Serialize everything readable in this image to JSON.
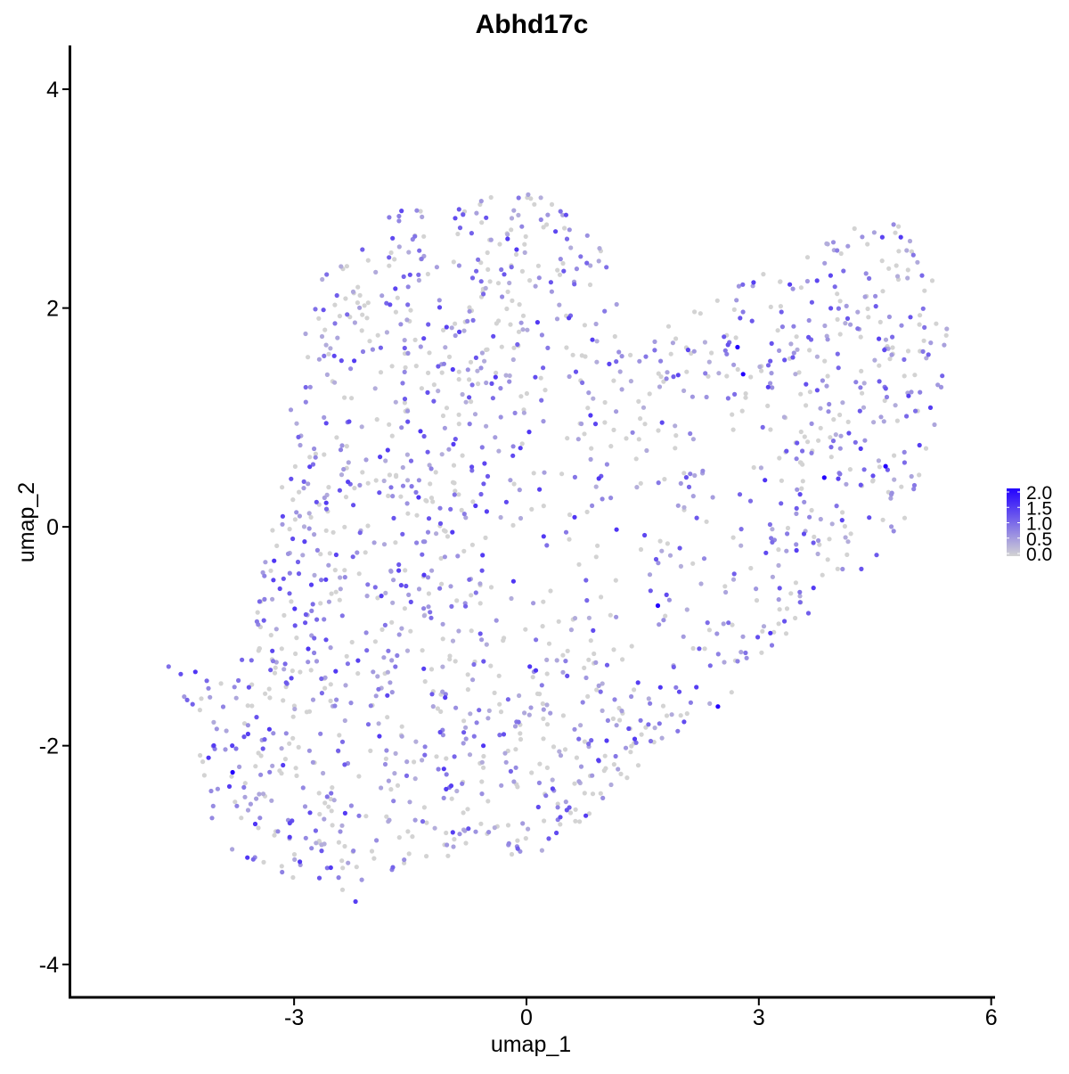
{
  "chart_data": {
    "type": "scatter",
    "title": "Abhd17c",
    "xlabel": "umap_1",
    "ylabel": "umap_2",
    "xlim": [
      -5.9,
      6.05
    ],
    "ylim": [
      -4.3,
      4.4
    ],
    "xticks": [
      -3,
      0,
      3,
      6
    ],
    "yticks": [
      -4,
      -2,
      0,
      2,
      4
    ],
    "xtick_labels": [
      "-3",
      "0",
      "3",
      "6"
    ],
    "ytick_labels": [
      "-4",
      "-2",
      "0",
      "2",
      "4"
    ],
    "grid": false,
    "legend": {
      "position": "right",
      "type": "colorbar",
      "min": 0.0,
      "max": 2.0,
      "ticks": [
        0.0,
        0.5,
        1.0,
        1.5,
        2.0
      ],
      "tick_labels": [
        "0.0",
        "0.5",
        "1.0",
        "1.5",
        "2.0"
      ]
    },
    "color_low": "#d3d3d3",
    "color_high": "#2200ff",
    "shape_outline": [
      [
        -4.75,
        -1.25
      ],
      [
        -4.45,
        -1.3
      ],
      [
        -4.05,
        -1.35
      ],
      [
        -3.6,
        -1.0
      ],
      [
        -3.35,
        -0.2
      ],
      [
        -3.2,
        0.55
      ],
      [
        -3.0,
        1.25
      ],
      [
        -2.85,
        1.9
      ],
      [
        -2.6,
        2.35
      ],
      [
        -2.2,
        2.75
      ],
      [
        -1.6,
        2.95
      ],
      [
        -1.0,
        3.02
      ],
      [
        -0.3,
        3.02
      ],
      [
        0.2,
        3.05
      ],
      [
        0.7,
        2.85
      ],
      [
        1.0,
        2.55
      ],
      [
        1.1,
        2.2
      ],
      [
        1.45,
        1.7
      ],
      [
        2.05,
        1.95
      ],
      [
        2.6,
        2.2
      ],
      [
        3.2,
        2.4
      ],
      [
        3.7,
        2.5
      ],
      [
        4.1,
        2.72
      ],
      [
        4.5,
        2.92
      ],
      [
        4.95,
        2.7
      ],
      [
        5.35,
        2.25
      ],
      [
        5.45,
        1.75
      ],
      [
        5.35,
        1.2
      ],
      [
        5.2,
        0.7
      ],
      [
        5.05,
        0.25
      ],
      [
        4.8,
        -0.1
      ],
      [
        4.4,
        -0.35
      ],
      [
        3.95,
        -0.6
      ],
      [
        3.55,
        -0.85
      ],
      [
        3.2,
        -1.1
      ],
      [
        2.8,
        -1.4
      ],
      [
        2.4,
        -1.7
      ],
      [
        1.95,
        -1.95
      ],
      [
        1.45,
        -2.2
      ],
      [
        1.05,
        -2.45
      ],
      [
        0.7,
        -2.8
      ],
      [
        0.25,
        -3.0
      ],
      [
        -0.3,
        -3.0
      ],
      [
        -0.9,
        -3.0
      ],
      [
        -1.5,
        -3.05
      ],
      [
        -1.9,
        -3.35
      ],
      [
        -2.15,
        -3.52
      ],
      [
        -2.45,
        -3.3
      ],
      [
        -2.9,
        -3.25
      ],
      [
        -3.35,
        -3.15
      ],
      [
        -3.75,
        -3.0
      ],
      [
        -4.05,
        -2.75
      ],
      [
        -4.25,
        -2.3
      ],
      [
        -4.2,
        -1.9
      ],
      [
        -4.35,
        -1.6
      ],
      [
        -4.65,
        -1.45
      ]
    ],
    "point_count": 1750,
    "expression_distribution": {
      "zero_fraction": 0.38,
      "typical_max": 1.5,
      "max": 2.0
    }
  }
}
